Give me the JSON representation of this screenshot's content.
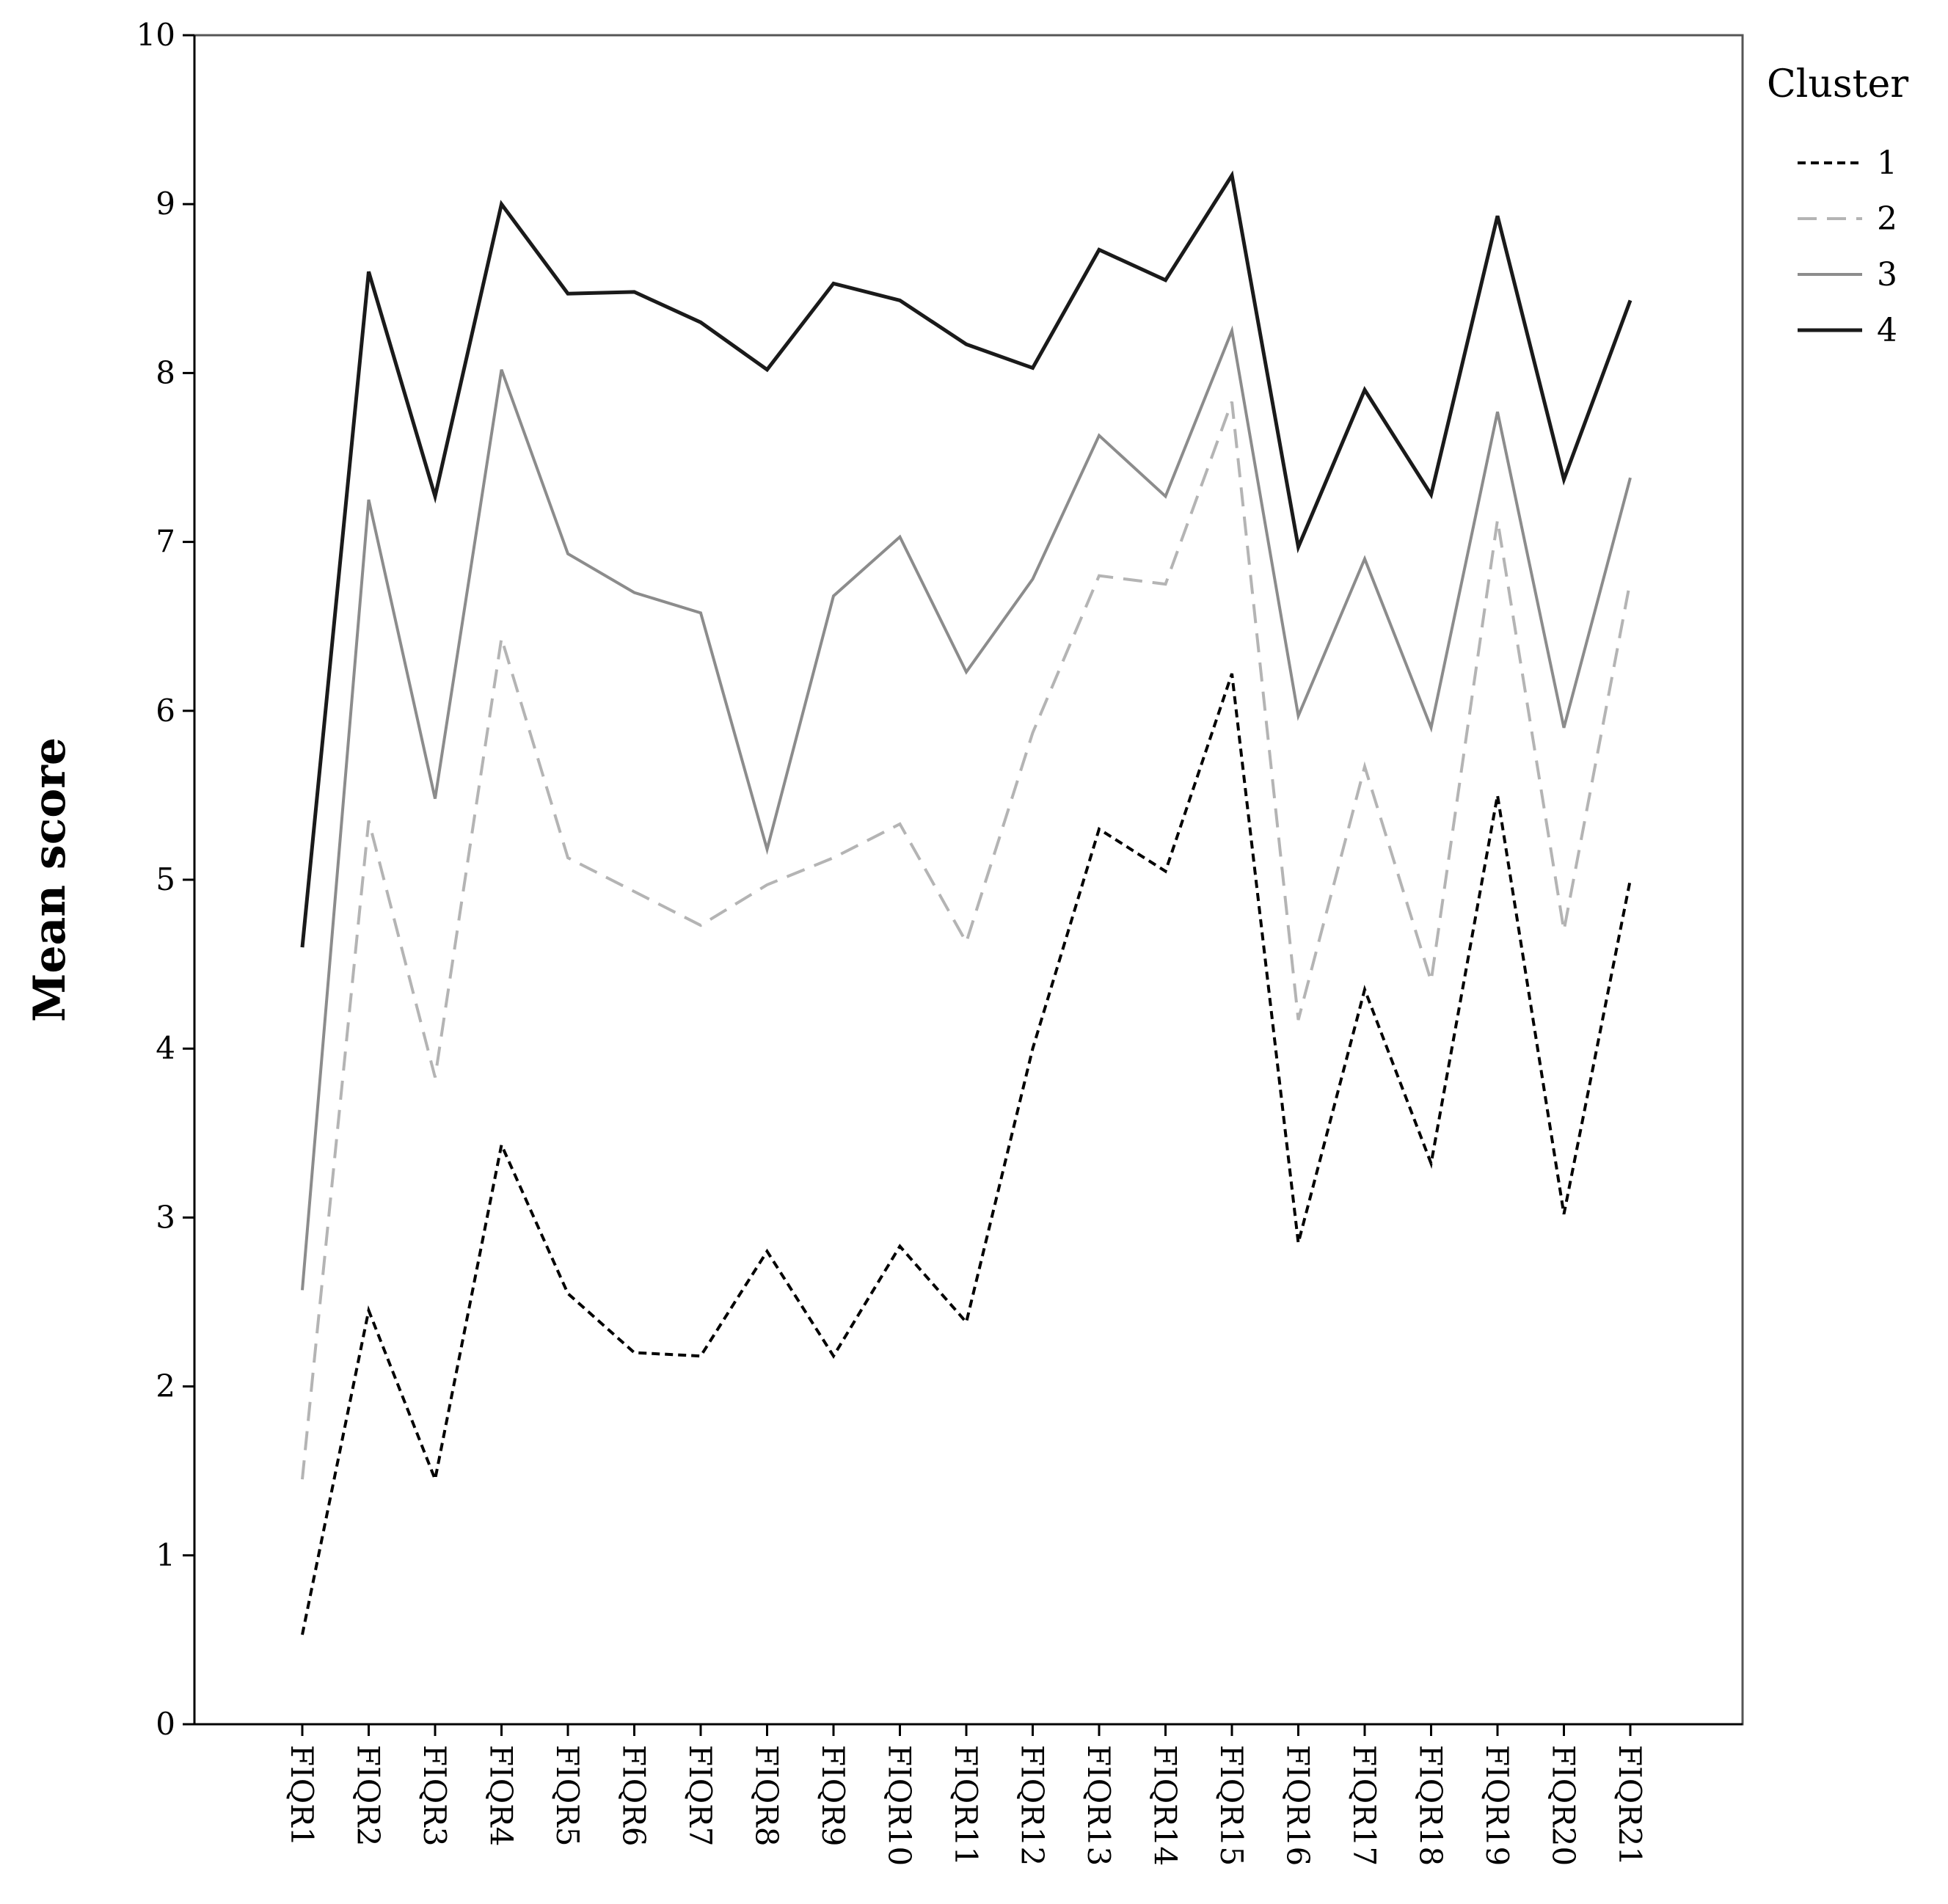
{
  "chart_data": {
    "type": "line",
    "title": "",
    "xlabel": "",
    "ylabel": "Mean score",
    "ylim": [
      0,
      10
    ],
    "yticks": [
      0,
      1,
      2,
      3,
      4,
      5,
      6,
      7,
      8,
      9,
      10
    ],
    "grid": false,
    "legend": {
      "title": "Cluster",
      "placement": "top-right, outside plot"
    },
    "categories": [
      "FIQR1",
      "FIQR2",
      "FIQR3",
      "FIQR4",
      "FIQR5",
      "FIQR6",
      "FIQR7",
      "FIQR8",
      "FIQR9",
      "FIQR10",
      "FIQR11",
      "FIQR12",
      "FIQR13",
      "FIQR14",
      "FIQR15",
      "FIQR16",
      "FIQR17",
      "FIQR18",
      "FIQR19",
      "FIQR20",
      "FIQR21"
    ],
    "series": [
      {
        "name": "1",
        "color": "#000000",
        "line_style": "short-dash",
        "values": [
          0.53,
          2.45,
          1.45,
          3.43,
          2.55,
          2.2,
          2.18,
          2.8,
          2.18,
          2.83,
          2.38,
          4.0,
          5.3,
          5.05,
          6.22,
          2.85,
          4.35,
          3.32,
          5.5,
          3.02,
          5.0
        ]
      },
      {
        "name": "2",
        "color": "#b4b4b4",
        "line_style": "long-dash",
        "values": [
          1.45,
          5.35,
          3.83,
          6.43,
          5.13,
          4.93,
          4.73,
          4.97,
          5.13,
          5.33,
          4.63,
          5.87,
          6.8,
          6.75,
          7.83,
          4.17,
          5.67,
          4.4,
          7.13,
          4.7,
          6.77
        ]
      },
      {
        "name": "3",
        "color": "#8c8c8c",
        "line_style": "solid",
        "values": [
          2.57,
          7.25,
          5.48,
          8.02,
          6.93,
          6.7,
          6.58,
          5.18,
          6.68,
          7.03,
          6.23,
          6.78,
          7.63,
          7.27,
          8.25,
          5.97,
          6.9,
          5.9,
          7.77,
          5.9,
          7.38
        ]
      },
      {
        "name": "4",
        "color": "#1a1a1a",
        "line_style": "solid",
        "values": [
          4.6,
          8.6,
          7.27,
          9.0,
          8.47,
          8.48,
          8.3,
          8.02,
          8.53,
          8.43,
          8.17,
          8.03,
          8.73,
          8.55,
          9.17,
          6.97,
          7.9,
          7.28,
          8.93,
          7.37,
          8.43
        ]
      }
    ]
  }
}
